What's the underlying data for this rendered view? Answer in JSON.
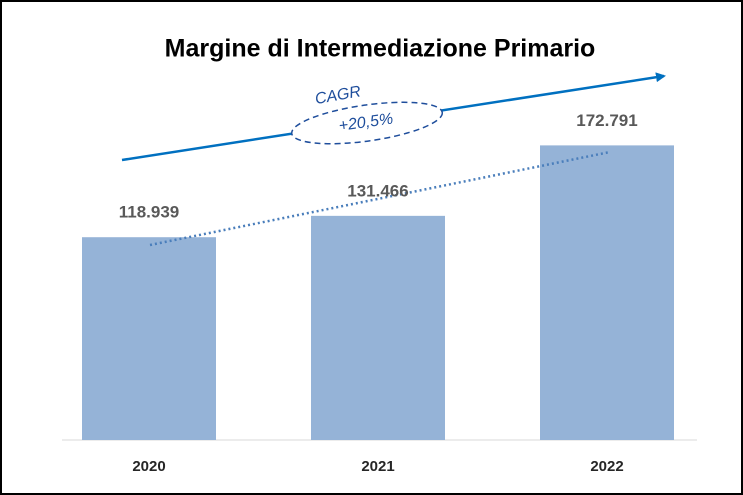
{
  "chart_data": {
    "type": "bar",
    "title": "Margine di Intermediazione Primario",
    "categories": [
      "2020",
      "2021",
      "2022"
    ],
    "values": [
      118939,
      131466,
      172791
    ],
    "value_labels": [
      "118.939",
      "131.466",
      "172.791"
    ],
    "color": "#95b3d7",
    "ylim": [
      0,
      200000
    ],
    "annotations": [
      "CAGR",
      "+20,5%"
    ]
  }
}
